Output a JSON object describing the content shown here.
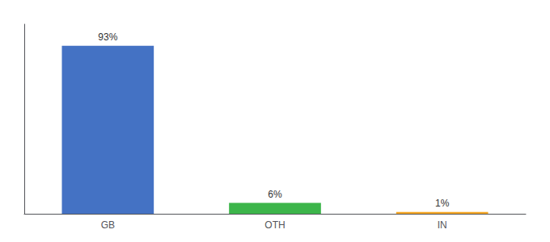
{
  "chart_data": {
    "type": "bar",
    "categories": [
      "GB",
      "OTH",
      "IN"
    ],
    "values": [
      93,
      6,
      1
    ],
    "value_labels": [
      "93%",
      "6%",
      "1%"
    ],
    "data_labels": true,
    "colors": [
      "#4472c4",
      "#3cb54a",
      "#f5a623"
    ],
    "ylim": [
      0,
      105
    ],
    "grid": false,
    "tick_labels": "x"
  }
}
